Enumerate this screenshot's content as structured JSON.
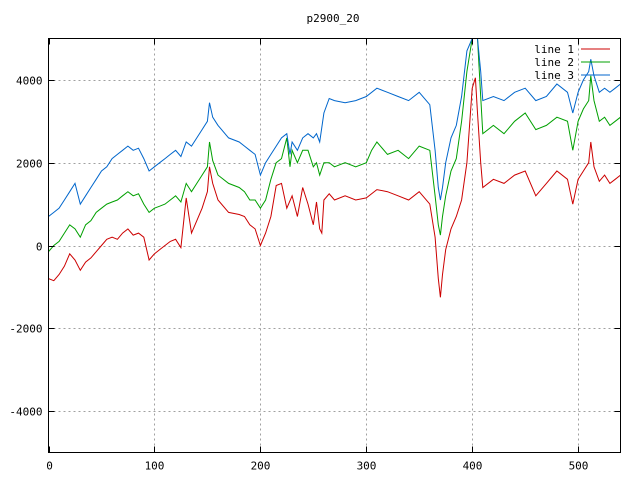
{
  "chart_data": {
    "type": "line",
    "title": "p2900_20",
    "xlabel": "",
    "ylabel": "",
    "xlim": [
      0,
      540
    ],
    "ylim": [
      -5000,
      5000
    ],
    "xticks": [
      0,
      100,
      200,
      300,
      400,
      500
    ],
    "yticks": [
      -4000,
      -2000,
      0,
      2000,
      4000
    ],
    "grid": true,
    "legend_position": "top-right",
    "series": [
      {
        "name": "line 1",
        "color": "#cc0000",
        "points": [
          [
            0,
            -800
          ],
          [
            5,
            -850
          ],
          [
            10,
            -700
          ],
          [
            15,
            -500
          ],
          [
            20,
            -200
          ],
          [
            25,
            -350
          ],
          [
            30,
            -600
          ],
          [
            35,
            -400
          ],
          [
            40,
            -300
          ],
          [
            45,
            -150
          ],
          [
            50,
            0
          ],
          [
            55,
            150
          ],
          [
            60,
            200
          ],
          [
            65,
            150
          ],
          [
            70,
            300
          ],
          [
            75,
            400
          ],
          [
            80,
            250
          ],
          [
            85,
            300
          ],
          [
            90,
            200
          ],
          [
            95,
            -350
          ],
          [
            100,
            -200
          ],
          [
            105,
            -100
          ],
          [
            110,
            0
          ],
          [
            115,
            100
          ],
          [
            120,
            150
          ],
          [
            125,
            -50
          ],
          [
            130,
            1150
          ],
          [
            135,
            300
          ],
          [
            140,
            600
          ],
          [
            145,
            900
          ],
          [
            150,
            1300
          ],
          [
            152,
            1900
          ],
          [
            155,
            1500
          ],
          [
            160,
            1100
          ],
          [
            170,
            800
          ],
          [
            180,
            750
          ],
          [
            185,
            700
          ],
          [
            190,
            500
          ],
          [
            195,
            400
          ],
          [
            200,
            0
          ],
          [
            205,
            300
          ],
          [
            210,
            700
          ],
          [
            215,
            1450
          ],
          [
            220,
            1500
          ],
          [
            225,
            900
          ],
          [
            230,
            1200
          ],
          [
            235,
            700
          ],
          [
            240,
            1400
          ],
          [
            245,
            1000
          ],
          [
            250,
            500
          ],
          [
            253,
            1050
          ],
          [
            256,
            400
          ],
          [
            258,
            300
          ],
          [
            260,
            1100
          ],
          [
            265,
            1250
          ],
          [
            270,
            1100
          ],
          [
            280,
            1200
          ],
          [
            290,
            1100
          ],
          [
            300,
            1150
          ],
          [
            310,
            1350
          ],
          [
            320,
            1300
          ],
          [
            330,
            1200
          ],
          [
            340,
            1100
          ],
          [
            350,
            1300
          ],
          [
            360,
            1000
          ],
          [
            365,
            200
          ],
          [
            368,
            -800
          ],
          [
            370,
            -1250
          ],
          [
            372,
            -700
          ],
          [
            375,
            -100
          ],
          [
            380,
            400
          ],
          [
            385,
            700
          ],
          [
            390,
            1100
          ],
          [
            395,
            2000
          ],
          [
            400,
            3800
          ],
          [
            403,
            4050
          ],
          [
            405,
            3200
          ],
          [
            408,
            2000
          ],
          [
            410,
            1400
          ],
          [
            420,
            1600
          ],
          [
            430,
            1500
          ],
          [
            440,
            1700
          ],
          [
            450,
            1800
          ],
          [
            460,
            1200
          ],
          [
            470,
            1500
          ],
          [
            480,
            1800
          ],
          [
            490,
            1600
          ],
          [
            495,
            1000
          ],
          [
            500,
            1600
          ],
          [
            505,
            1800
          ],
          [
            510,
            2000
          ],
          [
            512,
            2500
          ],
          [
            515,
            1900
          ],
          [
            520,
            1550
          ],
          [
            525,
            1700
          ],
          [
            530,
            1500
          ],
          [
            535,
            1600
          ],
          [
            540,
            1700
          ]
        ]
      },
      {
        "name": "line 2",
        "color": "#00a000",
        "points": [
          [
            0,
            -150
          ],
          [
            5,
            0
          ],
          [
            10,
            100
          ],
          [
            15,
            300
          ],
          [
            20,
            500
          ],
          [
            25,
            400
          ],
          [
            30,
            200
          ],
          [
            35,
            500
          ],
          [
            40,
            600
          ],
          [
            45,
            800
          ],
          [
            50,
            900
          ],
          [
            55,
            1000
          ],
          [
            60,
            1050
          ],
          [
            65,
            1100
          ],
          [
            70,
            1200
          ],
          [
            75,
            1300
          ],
          [
            80,
            1200
          ],
          [
            85,
            1250
          ],
          [
            90,
            1000
          ],
          [
            95,
            800
          ],
          [
            100,
            900
          ],
          [
            105,
            950
          ],
          [
            110,
            1000
          ],
          [
            115,
            1100
          ],
          [
            120,
            1200
          ],
          [
            125,
            1050
          ],
          [
            130,
            1500
          ],
          [
            135,
            1300
          ],
          [
            140,
            1500
          ],
          [
            145,
            1700
          ],
          [
            150,
            1900
          ],
          [
            152,
            2500
          ],
          [
            155,
            2050
          ],
          [
            160,
            1700
          ],
          [
            170,
            1500
          ],
          [
            180,
            1400
          ],
          [
            185,
            1300
          ],
          [
            190,
            1100
          ],
          [
            195,
            1100
          ],
          [
            200,
            900
          ],
          [
            205,
            1100
          ],
          [
            210,
            1600
          ],
          [
            215,
            2000
          ],
          [
            220,
            2100
          ],
          [
            225,
            2600
          ],
          [
            228,
            1900
          ],
          [
            230,
            2300
          ],
          [
            235,
            2000
          ],
          [
            240,
            2300
          ],
          [
            245,
            2300
          ],
          [
            250,
            1900
          ],
          [
            253,
            2000
          ],
          [
            256,
            1700
          ],
          [
            260,
            2000
          ],
          [
            265,
            2000
          ],
          [
            270,
            1900
          ],
          [
            280,
            2000
          ],
          [
            290,
            1900
          ],
          [
            300,
            2000
          ],
          [
            305,
            2300
          ],
          [
            310,
            2500
          ],
          [
            320,
            2200
          ],
          [
            330,
            2300
          ],
          [
            340,
            2100
          ],
          [
            350,
            2400
          ],
          [
            360,
            2300
          ],
          [
            365,
            1200
          ],
          [
            368,
            500
          ],
          [
            370,
            250
          ],
          [
            372,
            700
          ],
          [
            375,
            1200
          ],
          [
            380,
            1800
          ],
          [
            385,
            2100
          ],
          [
            390,
            3000
          ],
          [
            395,
            4200
          ],
          [
            400,
            5000
          ],
          [
            405,
            5000
          ],
          [
            408,
            3600
          ],
          [
            410,
            2700
          ],
          [
            420,
            2900
          ],
          [
            430,
            2700
          ],
          [
            440,
            3000
          ],
          [
            450,
            3200
          ],
          [
            460,
            2800
          ],
          [
            470,
            2900
          ],
          [
            480,
            3100
          ],
          [
            490,
            3000
          ],
          [
            495,
            2300
          ],
          [
            500,
            3000
          ],
          [
            505,
            3300
          ],
          [
            510,
            3500
          ],
          [
            512,
            4100
          ],
          [
            515,
            3500
          ],
          [
            520,
            3000
          ],
          [
            525,
            3100
          ],
          [
            530,
            2900
          ],
          [
            535,
            3000
          ],
          [
            540,
            3100
          ]
        ]
      },
      {
        "name": "line 3",
        "color": "#0066cc",
        "points": [
          [
            0,
            700
          ],
          [
            5,
            800
          ],
          [
            10,
            900
          ],
          [
            15,
            1100
          ],
          [
            20,
            1300
          ],
          [
            25,
            1500
          ],
          [
            30,
            1000
          ],
          [
            35,
            1200
          ],
          [
            40,
            1400
          ],
          [
            45,
            1600
          ],
          [
            50,
            1800
          ],
          [
            55,
            1900
          ],
          [
            60,
            2100
          ],
          [
            65,
            2200
          ],
          [
            70,
            2300
          ],
          [
            75,
            2400
          ],
          [
            80,
            2300
          ],
          [
            85,
            2350
          ],
          [
            90,
            2100
          ],
          [
            95,
            1800
          ],
          [
            100,
            1900
          ],
          [
            105,
            2000
          ],
          [
            110,
            2100
          ],
          [
            115,
            2200
          ],
          [
            120,
            2300
          ],
          [
            125,
            2150
          ],
          [
            130,
            2500
          ],
          [
            135,
            2400
          ],
          [
            140,
            2600
          ],
          [
            145,
            2800
          ],
          [
            150,
            3000
          ],
          [
            152,
            3450
          ],
          [
            155,
            3100
          ],
          [
            160,
            2900
          ],
          [
            170,
            2600
          ],
          [
            180,
            2500
          ],
          [
            185,
            2400
          ],
          [
            190,
            2300
          ],
          [
            195,
            2200
          ],
          [
            200,
            1700
          ],
          [
            205,
            2000
          ],
          [
            210,
            2200
          ],
          [
            215,
            2400
          ],
          [
            220,
            2600
          ],
          [
            225,
            2700
          ],
          [
            228,
            2200
          ],
          [
            230,
            2500
          ],
          [
            235,
            2300
          ],
          [
            240,
            2600
          ],
          [
            245,
            2700
          ],
          [
            250,
            2600
          ],
          [
            253,
            2700
          ],
          [
            256,
            2500
          ],
          [
            260,
            3200
          ],
          [
            265,
            3550
          ],
          [
            270,
            3500
          ],
          [
            280,
            3450
          ],
          [
            290,
            3500
          ],
          [
            300,
            3600
          ],
          [
            310,
            3800
          ],
          [
            320,
            3700
          ],
          [
            330,
            3600
          ],
          [
            340,
            3500
          ],
          [
            350,
            3700
          ],
          [
            360,
            3400
          ],
          [
            365,
            2300
          ],
          [
            368,
            1400
          ],
          [
            370,
            1100
          ],
          [
            372,
            1400
          ],
          [
            375,
            2000
          ],
          [
            380,
            2600
          ],
          [
            385,
            2900
          ],
          [
            390,
            3600
          ],
          [
            395,
            4700
          ],
          [
            400,
            5000
          ],
          [
            405,
            5000
          ],
          [
            408,
            4200
          ],
          [
            410,
            3500
          ],
          [
            420,
            3600
          ],
          [
            430,
            3500
          ],
          [
            440,
            3700
          ],
          [
            450,
            3800
          ],
          [
            460,
            3500
          ],
          [
            470,
            3600
          ],
          [
            480,
            3900
          ],
          [
            490,
            3700
          ],
          [
            495,
            3200
          ],
          [
            500,
            3700
          ],
          [
            505,
            4000
          ],
          [
            510,
            4200
          ],
          [
            512,
            4500
          ],
          [
            515,
            4100
          ],
          [
            520,
            3700
          ],
          [
            525,
            3800
          ],
          [
            530,
            3700
          ],
          [
            535,
            3800
          ],
          [
            540,
            3900
          ]
        ]
      }
    ]
  }
}
